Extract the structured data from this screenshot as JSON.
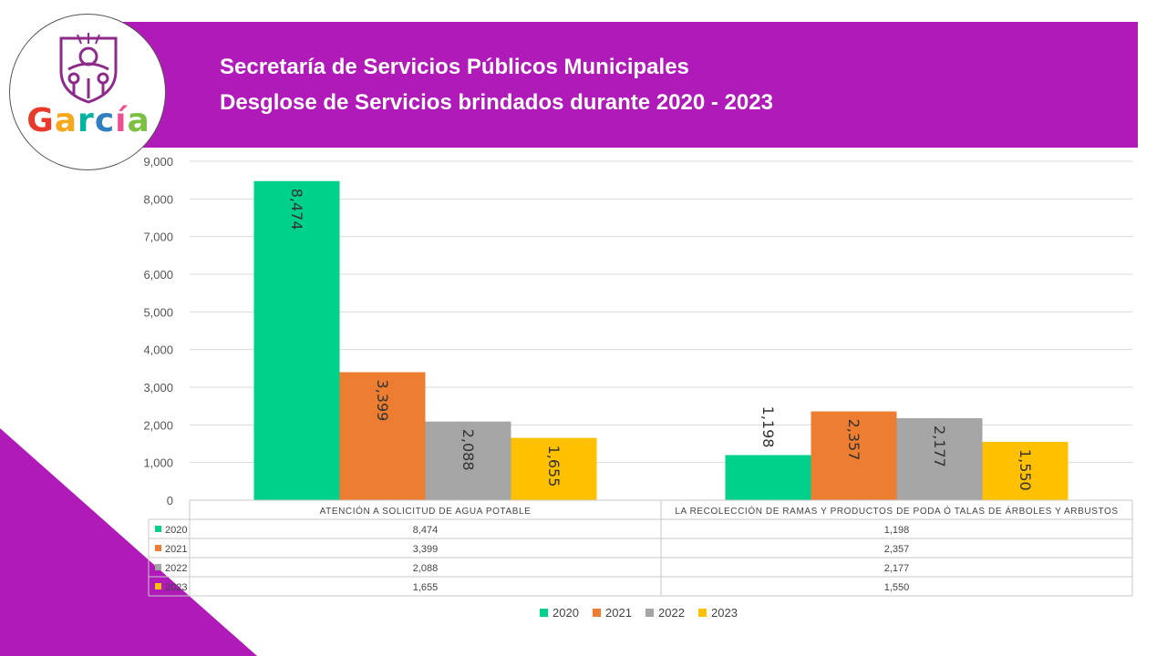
{
  "header": {
    "title_line1": "Secretaría de Servicios Públicos Municipales",
    "title_line2": "Desglose de Servicios brindados durante 2020 - 2023"
  },
  "logo": {
    "text": "García",
    "letter_colors": [
      "#e8392b",
      "#f5a81c",
      "#00b49e",
      "#2f7fc1",
      "#ef4f91",
      "#7bc043"
    ],
    "emblem_color": "#8e2b8a"
  },
  "colors": {
    "header_band": "#b01ab8",
    "corner_triangle": "#b01ab8"
  },
  "chart_data": {
    "type": "bar",
    "categories": [
      "ATENCIÓN A SOLICITUD DE AGUA POTABLE",
      "LA RECOLECCIÓN DE RAMAS Y PRODUCTOS DE PODA Ó TALAS DE ÁRBOLES Y ARBUSTOS"
    ],
    "series": [
      {
        "name": "2020",
        "color": "#00d18a",
        "values": [
          8474,
          1198
        ],
        "labels": [
          "8,474",
          "1,198"
        ]
      },
      {
        "name": "2021",
        "color": "#ed7d31",
        "values": [
          3399,
          2357
        ],
        "labels": [
          "3,399",
          "2,357"
        ]
      },
      {
        "name": "2022",
        "color": "#a5a5a5",
        "values": [
          2088,
          2177
        ],
        "labels": [
          "2,088",
          "2,177"
        ]
      },
      {
        "name": "2023",
        "color": "#ffc000",
        "values": [
          1655,
          1550
        ],
        "labels": [
          "1,655",
          "1,550"
        ]
      }
    ],
    "y_ticks": [
      "0",
      "1,000",
      "2,000",
      "3,000",
      "4,000",
      "5,000",
      "6,000",
      "7,000",
      "8,000",
      "9,000"
    ],
    "ylim": [
      0,
      9000
    ],
    "title": "",
    "xlabel": "",
    "ylabel": "",
    "grid": true,
    "data_table": true,
    "legend_position": "bottom"
  }
}
